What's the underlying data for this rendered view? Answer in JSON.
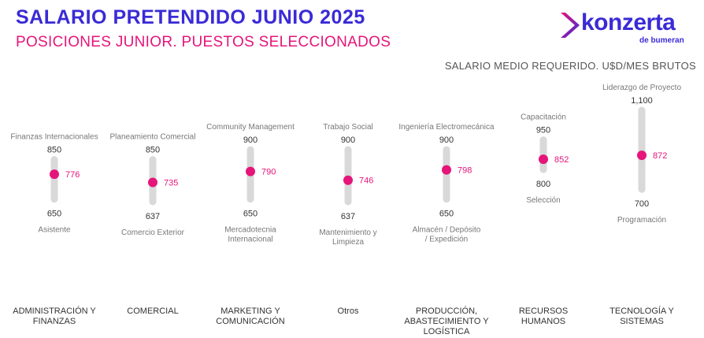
{
  "header": {
    "title": "SALARIO PRETENDIDO JUNIO 2025",
    "subtitle": "POSICIONES JUNIOR. PUESTOS SELECCIONADOS"
  },
  "logo": {
    "word": "konzerta",
    "sub": "de bumeran"
  },
  "colors": {
    "title": "#3A2BD6",
    "accent": "#E5157A",
    "track": "#D9D9D9"
  },
  "chart_data": {
    "type": "range",
    "subtitle": "SALARIO MEDIO REQUERIDO. U$D/MES BRUTOS",
    "categories": [
      "ADMINISTRACIÓN Y FINANZAS",
      "COMERCIAL",
      "MARKETING Y COMUNICACIÓN",
      "Otros",
      "PRODUCCIÓN, ABASTECIMIENTO Y LOGÍSTICA",
      "RECURSOS HUMANOS",
      "TECNOLOGÍA Y SISTEMAS"
    ],
    "series": [
      {
        "values": [
          776,
          735,
          790,
          746,
          798,
          852,
          872
        ]
      }
    ],
    "max": [
      850,
      850,
      900,
      900,
      900,
      950,
      1100
    ],
    "min": [
      650,
      637,
      650,
      637,
      650,
      800,
      700
    ],
    "max_labels": [
      "850",
      "850",
      "900",
      "900",
      "900",
      "950",
      "1,100"
    ],
    "min_labels": [
      "650",
      "637",
      "650",
      "637",
      "650",
      "800",
      "700"
    ],
    "max_positions": [
      "Finanzas Internacionales",
      "Planeamiento Comercial",
      "Community Management",
      "Trabajo Social",
      "Ingeniería Electromecánica",
      "Capacitación",
      "Liderazgo de Proyecto"
    ],
    "min_positions": [
      "Asistente",
      "Comercio Exterior",
      "Mercadotecnia Internacional",
      "Mantenimiento y Limpieza",
      "Almacén / Depósito / Expedición",
      "Selección",
      "Programación"
    ]
  }
}
